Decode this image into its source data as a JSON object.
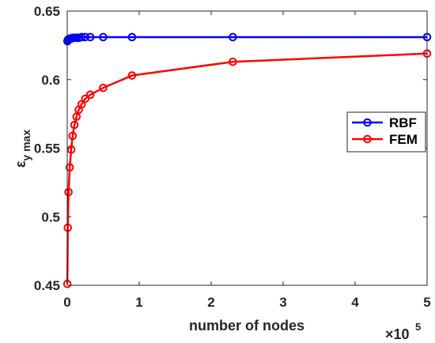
{
  "chart_data": {
    "type": "line",
    "title": "",
    "xlabel": "number of nodes",
    "ylabel_main": "ε",
    "ylabel_sub": "y max",
    "x_exponent_base": "×10",
    "x_exponent_power": "5",
    "xlim": [
      0,
      500000
    ],
    "ylim": [
      0.45,
      0.65
    ],
    "x_ticks": [
      0,
      100000,
      200000,
      300000,
      400000,
      500000
    ],
    "x_tick_labels": [
      "0",
      "1",
      "2",
      "3",
      "4",
      "5"
    ],
    "y_ticks": [
      0.45,
      0.5,
      0.55,
      0.6,
      0.65
    ],
    "y_tick_labels": [
      "0.45",
      "0.5",
      "0.55",
      "0.6",
      "0.65"
    ],
    "grid": false,
    "legend_position": "right",
    "series": [
      {
        "name": "RBF",
        "color": "#0000ff",
        "x": [
          400,
          1000,
          2000,
          4000,
          6000,
          8000,
          10000,
          13000,
          16000,
          20000,
          25000,
          32000,
          50000,
          90000,
          230000,
          500000
        ],
        "y": [
          0.628,
          0.629,
          0.6295,
          0.63,
          0.63,
          0.6305,
          0.6305,
          0.6305,
          0.6305,
          0.631,
          0.631,
          0.631,
          0.631,
          0.631,
          0.631,
          0.631
        ]
      },
      {
        "name": "FEM",
        "color": "#ff0000",
        "x": [
          200,
          800,
          1800,
          3500,
          5500,
          7500,
          10000,
          13000,
          16000,
          20000,
          25000,
          32000,
          50000,
          90000,
          230000,
          500000
        ],
        "y": [
          0.451,
          0.492,
          0.518,
          0.536,
          0.549,
          0.559,
          0.567,
          0.573,
          0.578,
          0.582,
          0.586,
          0.589,
          0.594,
          0.603,
          0.613,
          0.619
        ]
      }
    ]
  }
}
